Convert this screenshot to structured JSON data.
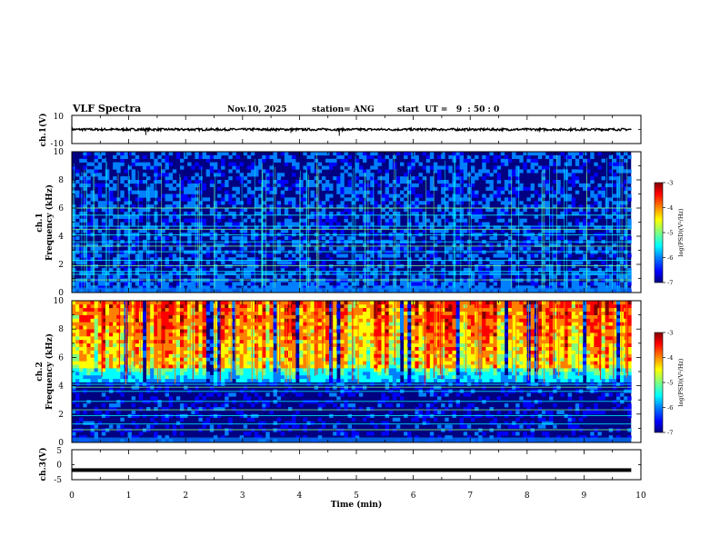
{
  "header": {
    "title": "VLF Spectra",
    "date": "Nov.10, 2025",
    "station": "station= ANG",
    "start": "start  UT =   9  : 50 : 0"
  },
  "chart_data": [
    {
      "type": "line",
      "id": "ch1-waveform",
      "ylabel": "ch.1(V)",
      "ylim": [
        -10,
        10
      ],
      "yticks": [
        "10",
        "-10"
      ],
      "xlim": [
        0,
        10
      ],
      "baseline": 0,
      "spikes": [
        {
          "x": 1.3,
          "y": -4
        },
        {
          "x": 3.85,
          "y": -2.5
        },
        {
          "x": 4.7,
          "y": -4.5
        },
        {
          "x": 3.2,
          "y": 1.5
        }
      ]
    },
    {
      "type": "heatmap",
      "id": "ch1-spectrogram",
      "ylabel_line1": "ch.1",
      "ylabel_line2": "Frequency (kHz)",
      "xlim": [
        0,
        10
      ],
      "ylim": [
        0,
        10
      ],
      "yticks": [
        "0",
        "2",
        "4",
        "6",
        "8",
        "10"
      ],
      "data_end_min": 9.83,
      "bright_lines_khz": [
        0.9,
        1.3,
        1.5,
        1.9,
        2.3,
        2.9,
        3.3,
        3.6,
        4.1,
        4.5,
        4.7,
        5.5,
        6.0
      ],
      "colorbar": {
        "label": "log(PSD)(V²/Hz)",
        "min": -7,
        "max": -3,
        "ticks": [
          "-3",
          "-4",
          "-5",
          "-6",
          "-7"
        ]
      }
    },
    {
      "type": "heatmap",
      "id": "ch2-spectrogram",
      "ylabel_line1": "ch.2",
      "ylabel_line2": "Frequency (kHz)",
      "xlim": [
        0,
        10
      ],
      "ylim": [
        0,
        10
      ],
      "yticks": [
        "0",
        "2",
        "4",
        "6",
        "8",
        "10"
      ],
      "data_end_min": 9.83,
      "bright_lines_khz": [
        0.9,
        1.3,
        1.9,
        2.3,
        2.9,
        3.6,
        3.9,
        4.1
      ],
      "colorbar": {
        "label": "log(PSD)(V²/Hz)",
        "min": -7,
        "max": -3,
        "ticks": [
          "-3",
          "-4",
          "-5",
          "-6",
          "-7"
        ]
      }
    },
    {
      "type": "line",
      "id": "ch3-waveform",
      "ylabel": "ch.3(V)",
      "ylim": [
        -5,
        5
      ],
      "yticks": [
        "5",
        "0",
        "-5"
      ],
      "xlim": [
        0,
        10
      ],
      "baseline": -1.8,
      "xlabel": "Time (min)",
      "xticks": [
        "0",
        "1",
        "2",
        "3",
        "4",
        "5",
        "6",
        "7",
        "8",
        "9",
        "10"
      ]
    }
  ],
  "colors": {
    "background": "#ffffff",
    "waveform": "#000000",
    "colormap": [
      "#000080",
      "#0000ff",
      "#0080ff",
      "#00ffff",
      "#80ff80",
      "#ffff00",
      "#ff8000",
      "#ff0000",
      "#800000"
    ]
  }
}
